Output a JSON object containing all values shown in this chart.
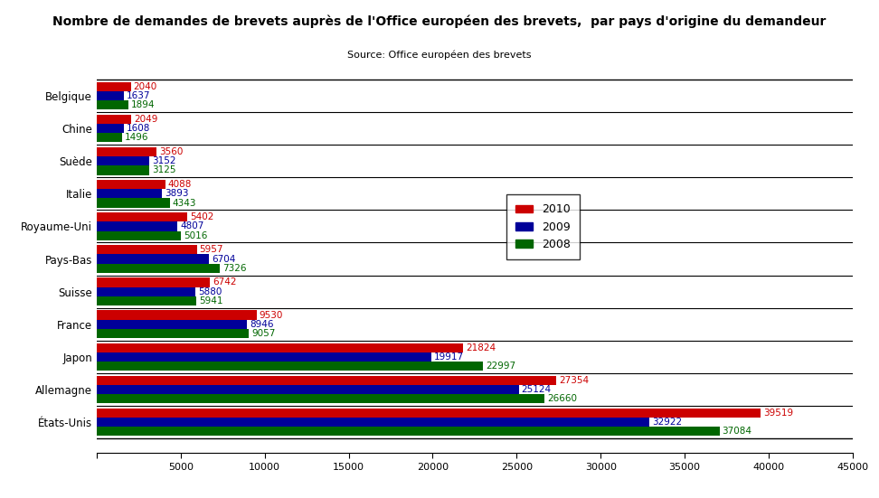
{
  "title": "Nombre de demandes de brevets auprès de l'Office européen des brevets,  par pays d'origine du demandeur",
  "subtitle": "Source: Office européen des brevets",
  "categories": [
    "États-Unis",
    "Allemagne",
    "Japon",
    "France",
    "Suisse",
    "Pays-Bas",
    "Royaume-Uni",
    "Italie",
    "Suède",
    "Chine",
    "Belgique"
  ],
  "series": {
    "2010": [
      39519,
      27354,
      21824,
      9530,
      6742,
      5957,
      5402,
      4088,
      3560,
      2049,
      2040
    ],
    "2009": [
      32922,
      25124,
      19917,
      8946,
      5880,
      6704,
      4807,
      3893,
      3152,
      1608,
      1637
    ],
    "2008": [
      37084,
      26660,
      22997,
      9057,
      5941,
      7326,
      5016,
      4343,
      3125,
      1496,
      1894
    ]
  },
  "colors": {
    "2010": "#cc0000",
    "2009": "#000099",
    "2008": "#006600"
  },
  "xlim": [
    0,
    45000
  ],
  "xticks": [
    0,
    5000,
    10000,
    15000,
    20000,
    25000,
    30000,
    35000,
    40000,
    45000
  ],
  "bar_height": 0.28,
  "figsize": [
    9.72,
    5.51
  ],
  "dpi": 100,
  "label_fontsize": 7.5,
  "title_fontsize": 10,
  "subtitle_fontsize": 8,
  "tick_fontsize": 8,
  "category_fontsize": 8.5
}
